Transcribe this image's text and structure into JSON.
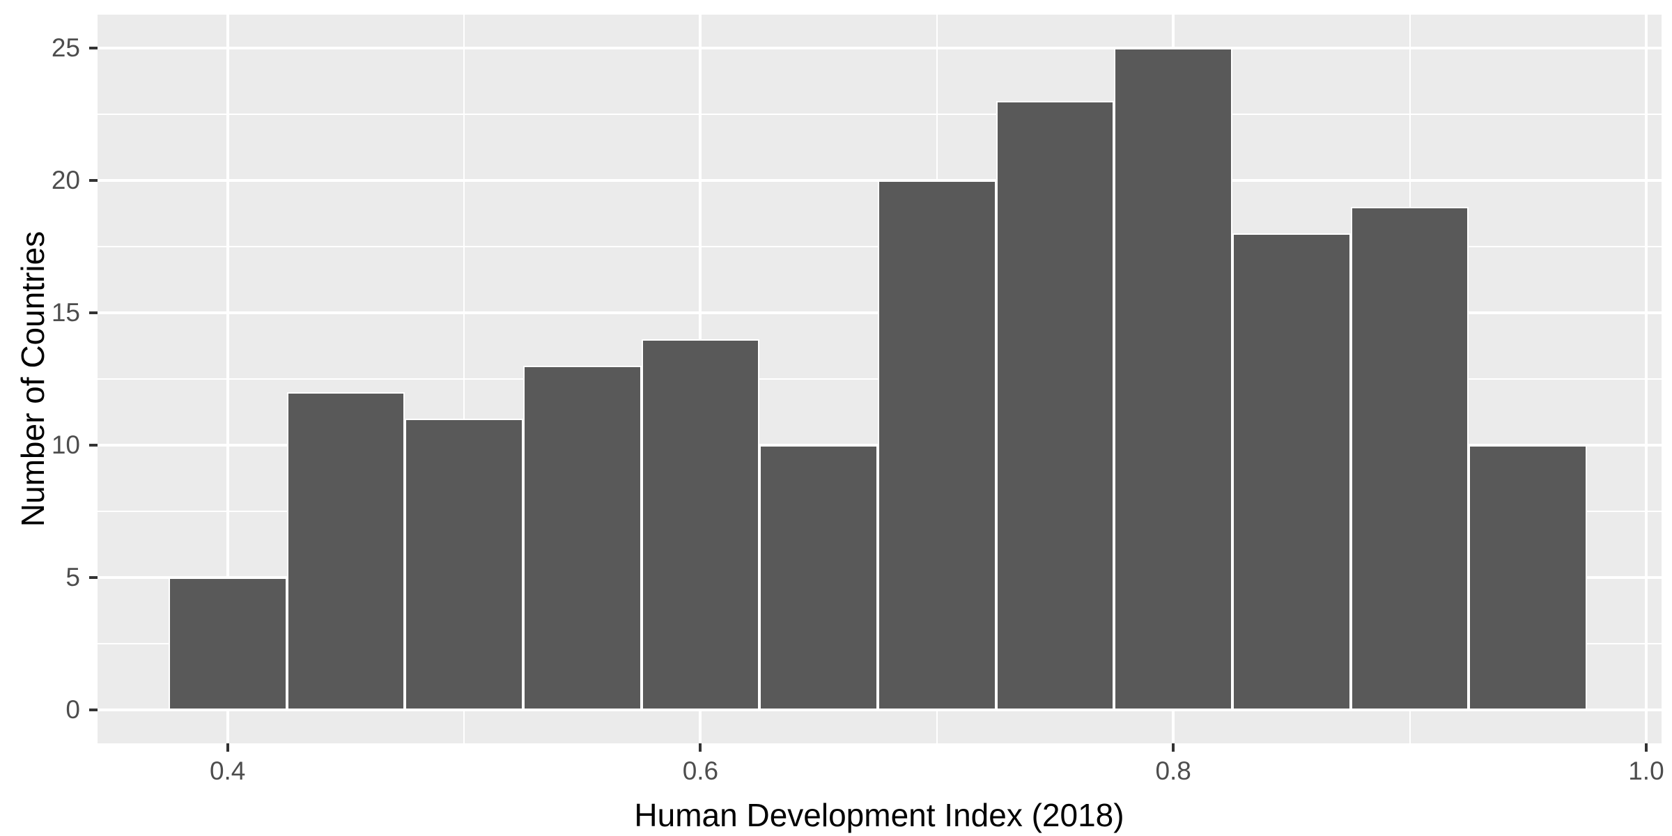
{
  "chart_data": {
    "type": "bar",
    "subtype": "histogram",
    "title": "",
    "xlabel": "Human Development Index (2018)",
    "ylabel": "Number of Countries",
    "bin_edges": [
      0.375,
      0.425,
      0.475,
      0.525,
      0.575,
      0.625,
      0.675,
      0.725,
      0.775,
      0.825,
      0.875,
      0.925,
      0.975
    ],
    "bin_centers": [
      0.4,
      0.45,
      0.5,
      0.55,
      0.6,
      0.65,
      0.7,
      0.75,
      0.8,
      0.85,
      0.9,
      0.95
    ],
    "counts": [
      5,
      12,
      11,
      13,
      14,
      10,
      20,
      23,
      25,
      18,
      19,
      10
    ],
    "x_axis": {
      "ticks": [
        0.4,
        0.6,
        0.8,
        1.0
      ],
      "tick_labels": [
        "0.4",
        "0.6",
        "0.8",
        "1.0"
      ],
      "minor_ticks": [
        0.5,
        0.7,
        0.9
      ],
      "range": [
        0.345,
        1.0065
      ]
    },
    "y_axis": {
      "ticks": [
        0,
        5,
        10,
        15,
        20,
        25
      ],
      "tick_labels": [
        "0",
        "5",
        "10",
        "15",
        "20",
        "25"
      ],
      "minor_ticks": [
        2.5,
        7.5,
        12.5,
        17.5,
        22.5
      ],
      "range": [
        -1.25,
        26.25
      ]
    },
    "grid": true,
    "legend": "none"
  },
  "style": {
    "figure_background": "#FFFFFF",
    "panel_background": "#EBEBEB",
    "grid_major_color": "#FFFFFF",
    "grid_minor_color": "#FFFFFF",
    "bar_fill": "#595959",
    "bar_stroke": "#FFFFFF",
    "axis_text_color": "#4D4D4D",
    "axis_title_color": "#000000",
    "tick_mark_color": "#333333"
  }
}
